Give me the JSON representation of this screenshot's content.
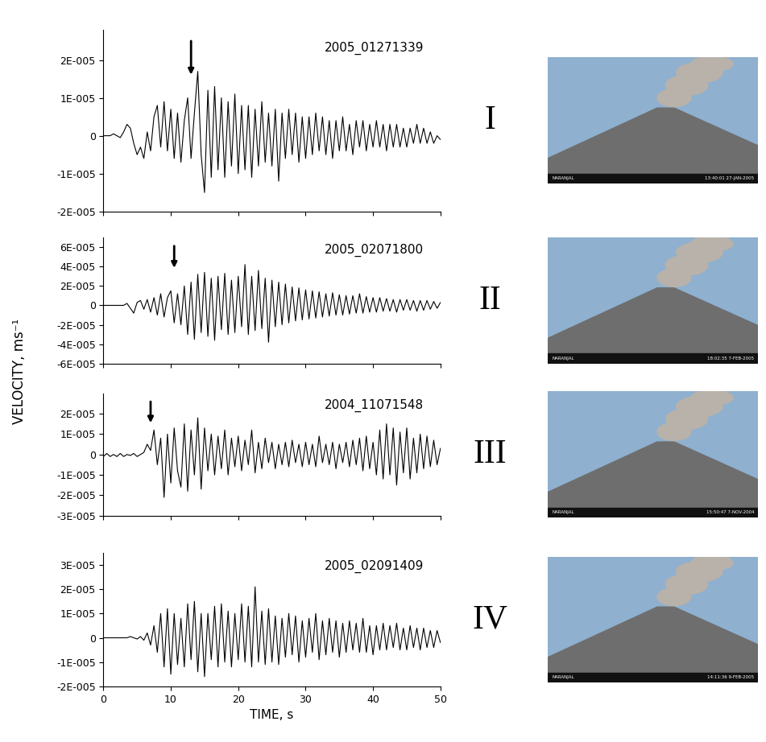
{
  "ylabel": "VELOCITY, ms⁻¹",
  "chart_data": [
    {
      "type": "line",
      "title": "2005_01271339",
      "panel_label": "I",
      "arrow_x": 13,
      "color": "#000000",
      "photo": {
        "station": "NARANJAL",
        "timestamp": "13:40:01 27-JAN-2005"
      },
      "xlim": [
        0,
        50
      ],
      "xticks": [
        0,
        10,
        20,
        30,
        40,
        50
      ],
      "tick_labels": "y",
      "ylim": [
        -2e-05,
        2.8e-05
      ],
      "yticks": [
        {
          "value": 2e-05,
          "label": "2E-005"
        },
        {
          "value": 1e-05,
          "label": "1E-005"
        },
        0,
        {
          "value": -1e-05,
          "label": "-1E-005"
        },
        {
          "value": -2e-05,
          "label": "-2E-005"
        }
      ],
      "x": [
        0,
        0.5,
        1,
        1.5,
        2,
        2.5,
        3,
        3.5,
        4,
        4.5,
        5,
        5.5,
        6,
        6.5,
        7,
        7.5,
        8,
        8.5,
        9,
        9.5,
        10,
        10.5,
        11,
        11.5,
        12,
        12.5,
        13,
        13.5,
        14,
        14.5,
        15,
        15.5,
        16,
        16.5,
        17,
        17.5,
        18,
        18.5,
        19,
        19.5,
        20,
        20.5,
        21,
        21.5,
        22,
        22.5,
        23,
        23.5,
        24,
        24.5,
        25,
        25.5,
        26,
        26.5,
        27,
        27.5,
        28,
        28.5,
        29,
        29.5,
        30,
        30.5,
        31,
        31.5,
        32,
        32.5,
        33,
        33.5,
        34,
        34.5,
        35,
        35.5,
        36,
        36.5,
        37,
        37.5,
        38,
        38.5,
        39,
        39.5,
        40,
        40.5,
        41,
        41.5,
        42,
        42.5,
        43,
        43.5,
        44,
        44.5,
        45,
        45.5,
        46,
        46.5,
        47,
        47.5,
        48,
        48.5,
        49,
        49.5,
        50
      ],
      "values": [
        0,
        0,
        0,
        5e-07,
        0,
        -5e-07,
        1e-06,
        3e-06,
        2e-06,
        -2e-06,
        -5e-06,
        -3e-06,
        -6e-06,
        1e-06,
        -4e-06,
        5e-06,
        8e-06,
        -3e-06,
        9e-06,
        -4e-06,
        7e-06,
        -6e-06,
        6e-06,
        -7e-06,
        4e-06,
        1e-05,
        -6e-06,
        6e-06,
        1.7e-05,
        -5e-06,
        -1.5e-05,
        1.2e-05,
        -1.1e-05,
        1.3e-05,
        -9e-06,
        1e-05,
        -1.1e-05,
        9e-06,
        -8e-06,
        1.1e-05,
        -1e-05,
        8e-06,
        -9e-06,
        8e-06,
        -1.1e-05,
        7e-06,
        -8e-06,
        9e-06,
        -7e-06,
        6e-06,
        -8e-06,
        7e-06,
        -1.2e-05,
        6e-06,
        -6e-06,
        7e-06,
        -5e-06,
        6e-06,
        -7e-06,
        5e-06,
        -6e-06,
        5e-06,
        -5e-06,
        6e-06,
        -4e-06,
        5e-06,
        -5e-06,
        4e-06,
        -6e-06,
        4e-06,
        -4e-06,
        5e-06,
        -4e-06,
        3e-06,
        -5e-06,
        4e-06,
        -3e-06,
        4e-06,
        -4e-06,
        3e-06,
        -3e-06,
        4e-06,
        -3e-06,
        3e-06,
        -4e-06,
        3e-06,
        -3e-06,
        3e-06,
        -3e-06,
        2e-06,
        -3e-06,
        2e-06,
        -2e-06,
        3e-06,
        -2e-06,
        2e-06,
        -2e-06,
        1e-06,
        -2e-06,
        0,
        -1e-06
      ]
    },
    {
      "type": "line",
      "title": "2005_02071800",
      "panel_label": "II",
      "arrow_x": 10.5,
      "color": "#000000",
      "photo": {
        "station": "NARANJAL",
        "timestamp": "18:02:35 7-FEB-2005"
      },
      "xlim": [
        0,
        50
      ],
      "xticks": [
        0,
        10,
        20,
        30,
        40,
        50
      ],
      "tick_labels": "y",
      "ylim": [
        -6e-05,
        7e-05
      ],
      "yticks": [
        {
          "value": 6e-05,
          "label": "6E-005"
        },
        {
          "value": 4e-05,
          "label": "4E-005"
        },
        {
          "value": 2e-05,
          "label": "2E-005"
        },
        0,
        {
          "value": -2e-05,
          "label": "-2E-005"
        },
        {
          "value": -4e-05,
          "label": "-4E-005"
        },
        {
          "value": -6e-05,
          "label": "-6E-005"
        }
      ],
      "x": [
        0,
        0.5,
        1,
        1.5,
        2,
        2.5,
        3,
        3.5,
        4,
        4.5,
        5,
        5.5,
        6,
        6.5,
        7,
        7.5,
        8,
        8.5,
        9,
        9.5,
        10,
        10.5,
        11,
        11.5,
        12,
        12.5,
        13,
        13.5,
        14,
        14.5,
        15,
        15.5,
        16,
        16.5,
        17,
        17.5,
        18,
        18.5,
        19,
        19.5,
        20,
        20.5,
        21,
        21.5,
        22,
        22.5,
        23,
        23.5,
        24,
        24.5,
        25,
        25.5,
        26,
        26.5,
        27,
        27.5,
        28,
        28.5,
        29,
        29.5,
        30,
        30.5,
        31,
        31.5,
        32,
        32.5,
        33,
        33.5,
        34,
        34.5,
        35,
        35.5,
        36,
        36.5,
        37,
        37.5,
        38,
        38.5,
        39,
        39.5,
        40,
        40.5,
        41,
        41.5,
        42,
        42.5,
        43,
        43.5,
        44,
        44.5,
        45,
        45.5,
        46,
        46.5,
        47,
        47.5,
        48,
        48.5,
        49,
        49.5,
        50
      ],
      "values": [
        0,
        0,
        0,
        0,
        0,
        0,
        0,
        2e-06,
        -3e-06,
        -8e-06,
        3e-06,
        5e-06,
        -4e-06,
        6e-06,
        -7e-06,
        8e-06,
        -1e-05,
        1.2e-05,
        -1.2e-05,
        8e-06,
        1.5e-05,
        -1.8e-05,
        1.2e-05,
        -2e-05,
        2e-05,
        -3e-05,
        2.4e-05,
        -3.5e-05,
        3.2e-05,
        -2.8e-05,
        3.4e-05,
        -3.2e-05,
        2.8e-05,
        -3.6e-05,
        3e-05,
        -2.5e-05,
        3.3e-05,
        -3e-05,
        2.6e-05,
        -2.8e-05,
        3e-05,
        -2.2e-05,
        4.2e-05,
        -3e-05,
        3e-05,
        -2.6e-05,
        3.6e-05,
        -2.4e-05,
        2.8e-05,
        -3.8e-05,
        2.6e-05,
        -2.2e-05,
        2.4e-05,
        -2e-05,
        2.2e-05,
        -1.8e-05,
        1.9e-05,
        -1.6e-05,
        1.8e-05,
        -1.5e-05,
        1.6e-05,
        -1.4e-05,
        1.5e-05,
        -1.3e-05,
        1.4e-05,
        -1.2e-05,
        1.2e-05,
        -1.1e-05,
        1.3e-05,
        -1e-05,
        1.1e-05,
        -1e-05,
        1e-05,
        -9e-06,
        1e-05,
        -8e-06,
        1.2e-05,
        -8e-06,
        9e-06,
        -7e-06,
        8e-06,
        -7e-06,
        8e-06,
        -6e-06,
        7e-06,
        -6e-06,
        6e-06,
        -7e-06,
        6e-06,
        -5e-06,
        6e-06,
        -5e-06,
        5e-06,
        -6e-06,
        5e-06,
        -5e-06,
        5e-06,
        -4e-06,
        4e-06,
        -3e-06,
        3e-06
      ]
    },
    {
      "type": "line",
      "title": "2004_11071548",
      "panel_label": "III",
      "arrow_x": 7,
      "color": "#000000",
      "photo": {
        "station": "NARANJAL",
        "timestamp": "15:50:47 7-NOV-2004"
      },
      "xlim": [
        0,
        50
      ],
      "xticks": [
        0,
        10,
        20,
        30,
        40,
        50
      ],
      "tick_labels": "y",
      "ylim": [
        -3e-05,
        3e-05
      ],
      "yticks": [
        {
          "value": 2e-05,
          "label": "2E-005"
        },
        {
          "value": 1e-05,
          "label": "1E-005"
        },
        0,
        {
          "value": -1e-05,
          "label": "-1E-005"
        },
        {
          "value": -2e-05,
          "label": "-2E-005"
        },
        {
          "value": -3e-05,
          "label": "-3E-005"
        }
      ],
      "x": [
        0,
        0.5,
        1,
        1.5,
        2,
        2.5,
        3,
        3.5,
        4,
        4.5,
        5,
        5.5,
        6,
        6.5,
        7,
        7.5,
        8,
        8.5,
        9,
        9.5,
        10,
        10.5,
        11,
        11.5,
        12,
        12.5,
        13,
        13.5,
        14,
        14.5,
        15,
        15.5,
        16,
        16.5,
        17,
        17.5,
        18,
        18.5,
        19,
        19.5,
        20,
        20.5,
        21,
        21.5,
        22,
        22.5,
        23,
        23.5,
        24,
        24.5,
        25,
        25.5,
        26,
        26.5,
        27,
        27.5,
        28,
        28.5,
        29,
        29.5,
        30,
        30.5,
        31,
        31.5,
        32,
        32.5,
        33,
        33.5,
        34,
        34.5,
        35,
        35.5,
        36,
        36.5,
        37,
        37.5,
        38,
        38.5,
        39,
        39.5,
        40,
        40.5,
        41,
        41.5,
        42,
        42.5,
        43,
        43.5,
        44,
        44.5,
        45,
        45.5,
        46,
        46.5,
        47,
        47.5,
        48,
        48.5,
        49,
        49.5,
        50
      ],
      "values": [
        -1e-06,
        5e-07,
        -1e-06,
        0,
        -1e-06,
        5e-07,
        -1e-06,
        0,
        -5e-07,
        5e-07,
        -1e-06,
        0,
        1e-06,
        5e-06,
        2e-06,
        1.2e-05,
        -5e-06,
        8e-06,
        -2.1e-05,
        1e-05,
        -1.4e-05,
        1.3e-05,
        -8e-06,
        -1.6e-05,
        1.5e-05,
        -1.8e-05,
        1.2e-05,
        -1e-05,
        1.8e-05,
        -1.7e-05,
        1.3e-05,
        -8e-06,
        1e-05,
        -1e-05,
        9e-06,
        -7e-06,
        1.2e-05,
        -1e-05,
        8e-06,
        -6e-06,
        9e-06,
        -8e-06,
        7e-06,
        -5e-06,
        1.2e-05,
        -9e-06,
        6e-06,
        -7e-06,
        8e-06,
        -4e-06,
        6e-06,
        -7e-06,
        5e-06,
        -5e-06,
        6e-06,
        -6e-06,
        7e-06,
        -4e-06,
        5e-06,
        -6e-06,
        6e-06,
        -5e-06,
        5e-06,
        -6e-06,
        9e-06,
        -4e-06,
        5e-06,
        -5e-06,
        6e-06,
        -7e-06,
        5e-06,
        -4e-06,
        6e-06,
        -6e-06,
        7e-06,
        -5e-06,
        8e-06,
        -8e-06,
        9e-06,
        -7e-06,
        6e-06,
        -1e-05,
        1.2e-05,
        -1.2e-05,
        1.5e-05,
        -1e-05,
        1.3e-05,
        -1.5e-05,
        1.1e-05,
        -9e-06,
        1.3e-05,
        -1.2e-05,
        8e-06,
        -9e-06,
        1e-05,
        -7e-06,
        9e-06,
        -6e-06,
        7e-06,
        -5e-06,
        3e-06
      ]
    },
    {
      "type": "line",
      "title": "2005_02091409",
      "panel_label": "IV",
      "color": "#000000",
      "photo": {
        "station": "NARANJAL",
        "timestamp": "14:11:36 9-FEB-2005"
      },
      "xlabel": "TIME, s",
      "xlim": [
        0,
        50
      ],
      "xticks": [
        0,
        10,
        20,
        30,
        40,
        50
      ],
      "ylim": [
        -2e-05,
        3.5e-05
      ],
      "yticks": [
        {
          "value": 3e-05,
          "label": "3E-005"
        },
        {
          "value": 2e-05,
          "label": "2E-005"
        },
        {
          "value": 1e-05,
          "label": "1E-005"
        },
        0,
        {
          "value": -1e-05,
          "label": "-1E-005"
        },
        {
          "value": -2e-05,
          "label": "-2E-005"
        }
      ],
      "x": [
        0,
        0.5,
        1,
        1.5,
        2,
        2.5,
        3,
        3.5,
        4,
        4.5,
        5,
        5.5,
        6,
        6.5,
        7,
        7.5,
        8,
        8.5,
        9,
        9.5,
        10,
        10.5,
        11,
        11.5,
        12,
        12.5,
        13,
        13.5,
        14,
        14.5,
        15,
        15.5,
        16,
        16.5,
        17,
        17.5,
        18,
        18.5,
        19,
        19.5,
        20,
        20.5,
        21,
        21.5,
        22,
        22.5,
        23,
        23.5,
        24,
        24.5,
        25,
        25.5,
        26,
        26.5,
        27,
        27.5,
        28,
        28.5,
        29,
        29.5,
        30,
        30.5,
        31,
        31.5,
        32,
        32.5,
        33,
        33.5,
        34,
        34.5,
        35,
        35.5,
        36,
        36.5,
        37,
        37.5,
        38,
        38.5,
        39,
        39.5,
        40,
        40.5,
        41,
        41.5,
        42,
        42.5,
        43,
        43.5,
        44,
        44.5,
        45,
        45.5,
        46,
        46.5,
        47,
        47.5,
        48,
        48.5,
        49,
        49.5,
        50
      ],
      "values": [
        0,
        0,
        0,
        0,
        0,
        0,
        0,
        0,
        5e-07,
        0,
        -5e-07,
        5e-07,
        -1e-06,
        2e-06,
        -3e-06,
        5e-06,
        -6e-06,
        1e-05,
        -1.2e-05,
        1.2e-05,
        -1.5e-05,
        1e-05,
        -1.1e-05,
        8e-06,
        -1.2e-05,
        1.4e-05,
        -9e-06,
        1.5e-05,
        -1.4e-05,
        1e-05,
        -1.6e-05,
        1e-05,
        -9e-06,
        1.3e-05,
        -1.2e-05,
        1.4e-05,
        -1e-05,
        1.1e-05,
        -1.2e-05,
        1e-05,
        -9e-06,
        1.4e-05,
        -1e-05,
        1.3e-05,
        -1.2e-05,
        2.1e-05,
        -1e-05,
        1.1e-05,
        -1.1e-05,
        1.2e-05,
        -1e-05,
        9e-06,
        -1.1e-05,
        8e-06,
        -8e-06,
        1e-05,
        -7e-06,
        9e-06,
        -1e-05,
        7e-06,
        -8e-06,
        8e-06,
        -6e-06,
        1e-05,
        -9e-06,
        7e-06,
        -7e-06,
        8e-06,
        -6e-06,
        7e-06,
        -8e-06,
        6e-06,
        -6e-06,
        7e-06,
        -5e-06,
        6e-06,
        -6e-06,
        8e-06,
        -6e-06,
        5e-06,
        -7e-06,
        5e-06,
        -5e-06,
        6e-06,
        -5e-06,
        5e-06,
        -4e-06,
        6e-06,
        -5e-06,
        4e-06,
        -5e-06,
        5e-06,
        -4e-06,
        4e-06,
        -5e-06,
        4e-06,
        -4e-06,
        3e-06,
        -4e-06,
        3e-06,
        -2e-06
      ]
    }
  ]
}
